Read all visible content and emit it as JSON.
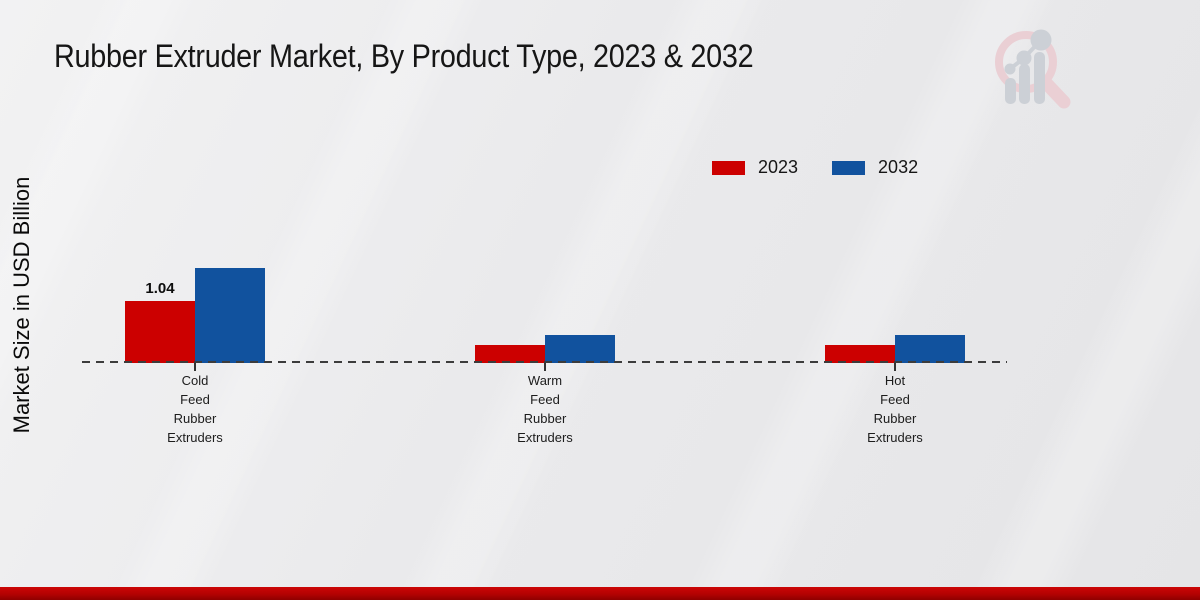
{
  "header": {
    "title": "Rubber Extruder Market, By Product Type, 2023 & 2032"
  },
  "axis": {
    "ylabel": "Market Size in USD Billion"
  },
  "legend": {
    "items": [
      {
        "label": "2023",
        "color": "#cc0000"
      },
      {
        "label": "2032",
        "color": "#11529e"
      }
    ]
  },
  "logo": {
    "name": "market-research-future-watermark",
    "ring_color": "#eacfd4",
    "bar_color": "#ccd0d6"
  },
  "footer": {
    "band_color": "#b30202"
  },
  "chart_data": {
    "type": "bar",
    "title": "Rubber Extruder Market, By Product Type, 2023 & 2032",
    "xlabel": "",
    "ylabel": "Market Size in USD Billion",
    "categories": [
      "Cold Feed Rubber Extruders",
      "Warm Feed Rubber Extruders",
      "Hot Feed Rubber Extruders"
    ],
    "series": [
      {
        "name": "2023",
        "color": "#cc0000",
        "values": [
          1.04,
          0.3,
          0.31
        ]
      },
      {
        "name": "2032",
        "color": "#11529e",
        "values": [
          1.6,
          0.47,
          0.47
        ]
      }
    ],
    "annotations": [
      {
        "category_index": 0,
        "series_index": 0,
        "text": "1.04"
      }
    ],
    "ylim": [
      0,
      1.8
    ],
    "grid": false,
    "baseline_style": "dashed",
    "legend_position": "upper-right"
  }
}
